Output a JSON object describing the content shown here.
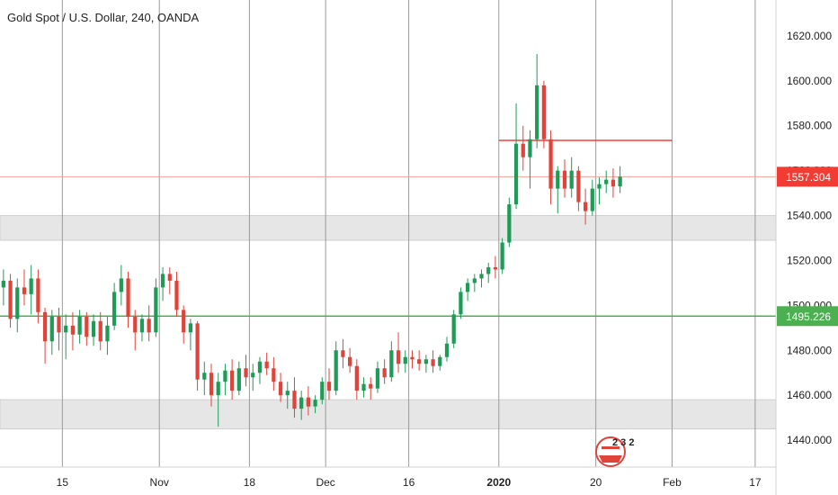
{
  "chart_data": {
    "type": "candlestick",
    "title": "Gold Spot / U.S. Dollar, 240, OANDA",
    "ylim": [
      1428,
      1636
    ],
    "xlim": [
      0,
      112
    ],
    "y_ticks": [
      "1620.000",
      "1600.000",
      "1580.000",
      "1560.000",
      "1540.000",
      "1520.000",
      "1500.000",
      "1480.000",
      "1460.000",
      "1440.000"
    ],
    "x_ticks": [
      {
        "label": "15",
        "x": 9,
        "bold": false
      },
      {
        "label": "Nov",
        "x": 23,
        "bold": false
      },
      {
        "label": "18",
        "x": 36,
        "bold": false
      },
      {
        "label": "Dec",
        "x": 47,
        "bold": false
      },
      {
        "label": "16",
        "x": 59,
        "bold": false
      },
      {
        "label": "2020",
        "x": 72,
        "bold": true
      },
      {
        "label": "20",
        "x": 86,
        "bold": false
      },
      {
        "label": "Feb",
        "x": 97,
        "bold": false
      },
      {
        "label": "17",
        "x": 109,
        "bold": false
      }
    ],
    "grid": true,
    "zones": [
      {
        "low": 1529,
        "high": 1540,
        "color": "#e6e6e6"
      },
      {
        "low": 1445,
        "high": 1458,
        "color": "#e6e6e6"
      }
    ],
    "levels": [
      {
        "name": "resistance",
        "price": 1573.5,
        "x_start": 72,
        "x_end": 97,
        "color": "#f0403a"
      },
      {
        "name": "support",
        "price": 1495.226,
        "label": "1495.226",
        "color": "#4caf50"
      },
      {
        "name": "last_price",
        "price": 1557.304,
        "label": "1557.304",
        "color": "#f4a39a",
        "badge_color": "#f23b32"
      }
    ],
    "up_color": "#1e9b57",
    "down_color": "#e0433a",
    "candles": [
      [
        0,
        1508,
        1516,
        1500,
        1511
      ],
      [
        1,
        1511,
        1514,
        1490,
        1494
      ],
      [
        2,
        1494,
        1512,
        1488,
        1508
      ],
      [
        3,
        1508,
        1516,
        1500,
        1505
      ],
      [
        4,
        1505,
        1518,
        1496,
        1512
      ],
      [
        5,
        1512,
        1516,
        1492,
        1497
      ],
      [
        6,
        1497,
        1499,
        1474,
        1484
      ],
      [
        7,
        1484,
        1498,
        1478,
        1495
      ],
      [
        8,
        1495,
        1499,
        1480,
        1488
      ],
      [
        9,
        1488,
        1496,
        1476,
        1491
      ],
      [
        10,
        1491,
        1497,
        1480,
        1487
      ],
      [
        11,
        1487,
        1498,
        1483,
        1495
      ],
      [
        12,
        1495,
        1497,
        1482,
        1486
      ],
      [
        13,
        1486,
        1496,
        1482,
        1493
      ],
      [
        14,
        1493,
        1497,
        1480,
        1484
      ],
      [
        15,
        1484,
        1495,
        1478,
        1491
      ],
      [
        16,
        1491,
        1510,
        1489,
        1506
      ],
      [
        17,
        1506,
        1518,
        1500,
        1512
      ],
      [
        18,
        1512,
        1515,
        1490,
        1495
      ],
      [
        19,
        1495,
        1498,
        1480,
        1488
      ],
      [
        20,
        1488,
        1496,
        1484,
        1494
      ],
      [
        21,
        1494,
        1500,
        1484,
        1488
      ],
      [
        22,
        1488,
        1512,
        1486,
        1508
      ],
      [
        23,
        1508,
        1517,
        1502,
        1514
      ],
      [
        24,
        1514,
        1517,
        1505,
        1511
      ],
      [
        25,
        1511,
        1515,
        1495,
        1498
      ],
      [
        26,
        1498,
        1500,
        1483,
        1488
      ],
      [
        27,
        1488,
        1494,
        1480,
        1492
      ],
      [
        28,
        1492,
        1493,
        1462,
        1467
      ],
      [
        29,
        1467,
        1475,
        1460,
        1470
      ],
      [
        30,
        1470,
        1474,
        1455,
        1460
      ],
      [
        31,
        1460,
        1470,
        1446,
        1466
      ],
      [
        32,
        1466,
        1474,
        1460,
        1471
      ],
      [
        33,
        1471,
        1476,
        1458,
        1462
      ],
      [
        34,
        1462,
        1475,
        1460,
        1472
      ],
      [
        35,
        1472,
        1478,
        1464,
        1468
      ],
      [
        36,
        1468,
        1474,
        1462,
        1470
      ],
      [
        37,
        1470,
        1477,
        1465,
        1475
      ],
      [
        38,
        1475,
        1479,
        1469,
        1472
      ],
      [
        39,
        1472,
        1477,
        1462,
        1466
      ],
      [
        40,
        1466,
        1470,
        1457,
        1460
      ],
      [
        41,
        1460,
        1466,
        1454,
        1462
      ],
      [
        42,
        1462,
        1468,
        1450,
        1454
      ],
      [
        43,
        1454,
        1462,
        1449,
        1459
      ],
      [
        44,
        1459,
        1464,
        1451,
        1455
      ],
      [
        45,
        1455,
        1460,
        1452,
        1458
      ],
      [
        46,
        1458,
        1468,
        1456,
        1466
      ],
      [
        47,
        1466,
        1472,
        1458,
        1462
      ],
      [
        48,
        1462,
        1484,
        1460,
        1480
      ],
      [
        49,
        1480,
        1485,
        1472,
        1477
      ],
      [
        50,
        1477,
        1481,
        1470,
        1473
      ],
      [
        51,
        1473,
        1476,
        1458,
        1462
      ],
      [
        52,
        1462,
        1468,
        1459,
        1465
      ],
      [
        53,
        1465,
        1468,
        1458,
        1463
      ],
      [
        54,
        1463,
        1475,
        1461,
        1472
      ],
      [
        55,
        1472,
        1476,
        1465,
        1468
      ],
      [
        56,
        1468,
        1484,
        1466,
        1480
      ],
      [
        57,
        1480,
        1488,
        1470,
        1474
      ],
      [
        58,
        1474,
        1480,
        1470,
        1477
      ],
      [
        59,
        1477,
        1480,
        1472,
        1476
      ],
      [
        60,
        1476,
        1480,
        1471,
        1474
      ],
      [
        61,
        1474,
        1478,
        1470,
        1476
      ],
      [
        62,
        1476,
        1480,
        1470,
        1473
      ],
      [
        63,
        1473,
        1478,
        1471,
        1477
      ],
      [
        64,
        1477,
        1486,
        1475,
        1483
      ],
      [
        65,
        1483,
        1498,
        1481,
        1496
      ],
      [
        66,
        1496,
        1508,
        1494,
        1506
      ],
      [
        67,
        1506,
        1512,
        1502,
        1510
      ],
      [
        68,
        1510,
        1514,
        1506,
        1512
      ],
      [
        69,
        1512,
        1516,
        1508,
        1514
      ],
      [
        70,
        1514,
        1519,
        1510,
        1517
      ],
      [
        71,
        1517,
        1522,
        1512,
        1516
      ],
      [
        72,
        1516,
        1530,
        1514,
        1528
      ],
      [
        73,
        1528,
        1548,
        1526,
        1545
      ],
      [
        74,
        1545,
        1590,
        1543,
        1572
      ],
      [
        75,
        1572,
        1580,
        1560,
        1566
      ],
      [
        76,
        1566,
        1578,
        1552,
        1574
      ],
      [
        77,
        1574,
        1612,
        1570,
        1598
      ],
      [
        78,
        1598,
        1600,
        1570,
        1574
      ],
      [
        79,
        1574,
        1578,
        1545,
        1552
      ],
      [
        80,
        1552,
        1562,
        1541,
        1560
      ],
      [
        81,
        1560,
        1565,
        1548,
        1552
      ],
      [
        82,
        1552,
        1566,
        1548,
        1560
      ],
      [
        83,
        1560,
        1562,
        1542,
        1546
      ],
      [
        84,
        1546,
        1552,
        1536,
        1542
      ],
      [
        85,
        1542,
        1556,
        1540,
        1552
      ],
      [
        86,
        1552,
        1557,
        1545,
        1554
      ],
      [
        87,
        1554,
        1560,
        1550,
        1556
      ],
      [
        88,
        1556,
        1561,
        1548,
        1553
      ],
      [
        89,
        1553,
        1562,
        1550,
        1557.3
      ]
    ]
  },
  "watermark": {
    "text": "2 3 2"
  }
}
